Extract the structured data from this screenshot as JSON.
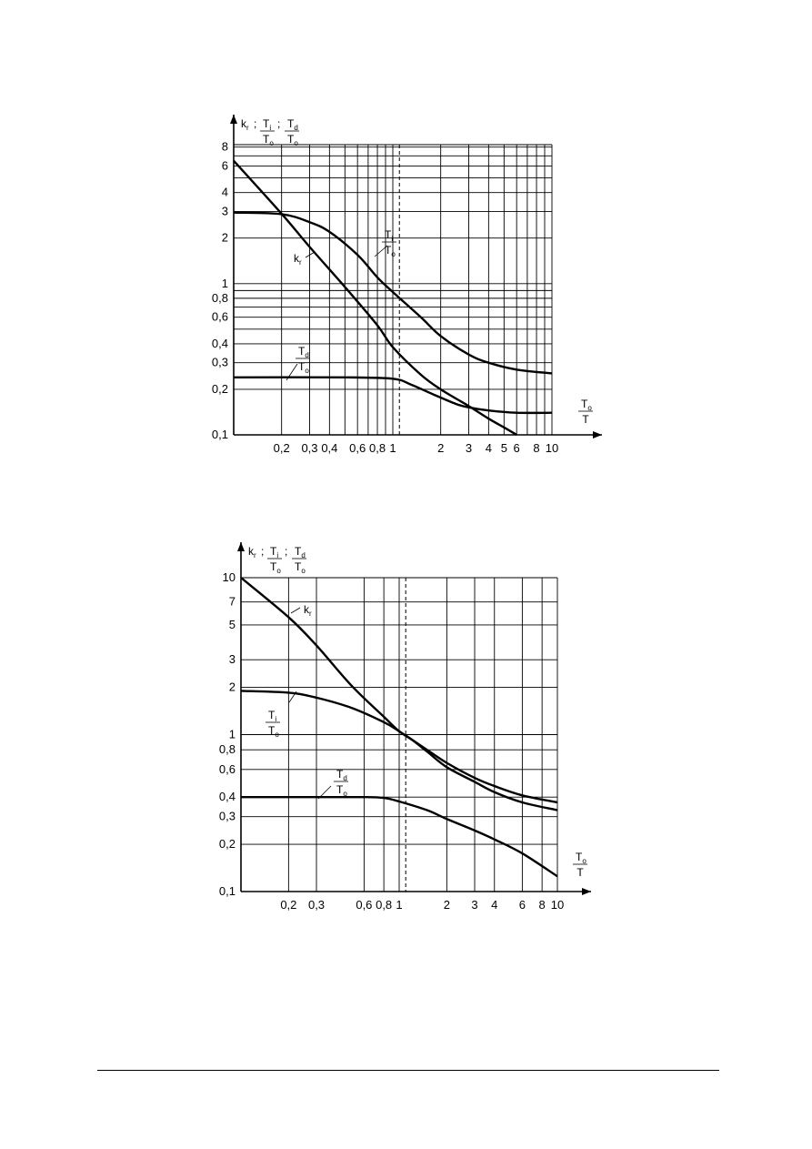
{
  "chart_data": [
    {
      "type": "line",
      "xscale": "log",
      "yscale": "log",
      "xlim": [
        0.1,
        10
      ],
      "ylim": [
        0.1,
        10
      ],
      "x_ticks": [
        {
          "v": 0.2,
          "t": "0,2"
        },
        {
          "v": 0.3,
          "t": "0,3"
        },
        {
          "v": 0.4,
          "t": "0,4"
        },
        {
          "v": 0.6,
          "t": "0,6"
        },
        {
          "v": 0.8,
          "t": "0,8"
        },
        {
          "v": 1,
          "t": "1"
        },
        {
          "v": 2,
          "t": "2"
        },
        {
          "v": 3,
          "t": "3"
        },
        {
          "v": 4,
          "t": "4"
        },
        {
          "v": 5,
          "t": "5"
        },
        {
          "v": 6,
          "t": "6"
        },
        {
          "v": 8,
          "t": "8"
        },
        {
          "v": 10,
          "t": "10"
        }
      ],
      "y_ticks": [
        {
          "v": 0.1,
          "t": "0,1"
        },
        {
          "v": 0.2,
          "t": "0,2"
        },
        {
          "v": 0.3,
          "t": "0,3"
        },
        {
          "v": 0.4,
          "t": "0,4"
        },
        {
          "v": 0.6,
          "t": "0,6"
        },
        {
          "v": 0.8,
          "t": "0,8"
        },
        {
          "v": 1,
          "t": "1"
        },
        {
          "v": 2,
          "t": "2"
        },
        {
          "v": 3,
          "t": "3"
        },
        {
          "v": 4,
          "t": "4"
        },
        {
          "v": 6,
          "t": "6"
        },
        {
          "v": 8,
          "t": "8"
        }
      ],
      "x_grid": [
        0.2,
        0.3,
        0.4,
        0.5,
        0.6,
        0.7,
        0.8,
        0.9,
        1,
        2,
        3,
        4,
        5,
        6,
        7,
        8,
        9,
        10
      ],
      "y_grid": [
        0.2,
        0.3,
        0.4,
        0.5,
        0.6,
        0.7,
        0.8,
        0.9,
        1,
        2,
        3,
        4,
        5,
        6,
        7,
        8
      ],
      "dashed_x": 1.1,
      "y_axis_label": {
        "k": "k",
        "k_sub": "r",
        "sep": ";",
        "n1": "T",
        "n1_sub": "i",
        "d1": "T",
        "d1_sub": "o",
        "n2": "T",
        "n2_sub": "d",
        "d2": "T",
        "d2_sub": "o"
      },
      "x_axis_label": {
        "num": "T",
        "num_sub": "o",
        "den": "T"
      },
      "series": [
        {
          "name": "k_r",
          "x": [
            0.1,
            0.2,
            0.3,
            0.5,
            0.8,
            1.0,
            1.5,
            2.0,
            3.0,
            4.0,
            5.0,
            6.0
          ],
          "y": [
            6.5,
            2.9,
            1.75,
            0.95,
            0.53,
            0.38,
            0.25,
            0.2,
            0.155,
            0.128,
            0.112,
            0.1
          ]
        },
        {
          "name": "T_i/T_o",
          "x": [
            0.1,
            0.2,
            0.3,
            0.4,
            0.6,
            0.8,
            1.0,
            1.5,
            2.0,
            3.0,
            4.0,
            6.0,
            10.0
          ],
          "y": [
            2.95,
            2.88,
            2.55,
            2.2,
            1.55,
            1.1,
            0.88,
            0.6,
            0.45,
            0.34,
            0.3,
            0.27,
            0.255
          ]
        },
        {
          "name": "T_d/T_o",
          "x": [
            0.1,
            0.5,
            1.0,
            1.3,
            1.8,
            2.5,
            3.0,
            4.0,
            6.0,
            10.0
          ],
          "y": [
            0.24,
            0.24,
            0.235,
            0.215,
            0.185,
            0.16,
            0.152,
            0.145,
            0.14,
            0.14
          ]
        }
      ],
      "curve_labels": [
        {
          "series": "k_r",
          "text": "k",
          "sub": "r"
        },
        {
          "series": "T_i/T_o",
          "num": "T",
          "num_sub": "i",
          "den": "T",
          "den_sub": "o"
        },
        {
          "series": "T_d/T_o",
          "num": "T",
          "num_sub": "d",
          "den": "T",
          "den_sub": "o"
        }
      ]
    },
    {
      "type": "line",
      "xscale": "log",
      "yscale": "log",
      "xlim": [
        0.1,
        10
      ],
      "ylim": [
        0.1,
        10
      ],
      "x_ticks": [
        {
          "v": 0.2,
          "t": "0,2"
        },
        {
          "v": 0.3,
          "t": "0,3"
        },
        {
          "v": 0.6,
          "t": "0,6"
        },
        {
          "v": 0.8,
          "t": "0,8"
        },
        {
          "v": 1,
          "t": "1"
        },
        {
          "v": 2,
          "t": "2"
        },
        {
          "v": 3,
          "t": "3"
        },
        {
          "v": 4,
          "t": "4"
        },
        {
          "v": 6,
          "t": "6"
        },
        {
          "v": 8,
          "t": "8"
        },
        {
          "v": 10,
          "t": "10"
        }
      ],
      "y_ticks": [
        {
          "v": 0.1,
          "t": "0,1"
        },
        {
          "v": 0.2,
          "t": "0,2"
        },
        {
          "v": 0.3,
          "t": "0,3"
        },
        {
          "v": 0.4,
          "t": "0,4"
        },
        {
          "v": 0.6,
          "t": "0,6"
        },
        {
          "v": 0.8,
          "t": "0,8"
        },
        {
          "v": 1,
          "t": "1"
        },
        {
          "v": 2,
          "t": "2"
        },
        {
          "v": 3,
          "t": "3"
        },
        {
          "v": 5,
          "t": "5"
        },
        {
          "v": 7,
          "t": "7"
        },
        {
          "v": 10,
          "t": "10"
        }
      ],
      "x_grid": [
        0.2,
        0.3,
        0.6,
        0.8,
        1,
        2,
        3,
        4,
        6,
        8,
        10
      ],
      "y_grid": [
        0.2,
        0.3,
        0.4,
        0.6,
        0.8,
        1,
        2,
        3,
        5,
        7,
        10
      ],
      "dashed_x": 1.1,
      "y_axis_label": {
        "k": "k",
        "k_sub": "r",
        "sep": ";",
        "n1": "T",
        "n1_sub": "i",
        "d1": "T",
        "d1_sub": "o",
        "n2": "T",
        "n2_sub": "d",
        "d2": "T",
        "d2_sub": "o"
      },
      "x_axis_label": {
        "num": "T",
        "num_sub": "o",
        "den": "T"
      },
      "series": [
        {
          "name": "k_r",
          "x": [
            0.1,
            0.2,
            0.3,
            0.5,
            0.8,
            1.0,
            1.2,
            1.5,
            2.0,
            3.0,
            4.0,
            6.0,
            10.0
          ],
          "y": [
            10.0,
            5.6,
            3.7,
            2.05,
            1.3,
            1.05,
            0.93,
            0.8,
            0.66,
            0.53,
            0.47,
            0.41,
            0.37
          ]
        },
        {
          "name": "T_i/T_o",
          "x": [
            0.1,
            0.2,
            0.3,
            0.5,
            0.8,
            1.0,
            1.2,
            1.5,
            2.0,
            3.0,
            4.0,
            6.0,
            10.0
          ],
          "y": [
            1.9,
            1.85,
            1.72,
            1.48,
            1.2,
            1.05,
            0.93,
            0.78,
            0.62,
            0.5,
            0.43,
            0.37,
            0.33
          ]
        },
        {
          "name": "T_d/T_o",
          "x": [
            0.1,
            0.3,
            0.6,
            0.8,
            1.0,
            1.5,
            2.0,
            3.0,
            4.0,
            6.0,
            10.0
          ],
          "y": [
            0.4,
            0.4,
            0.4,
            0.395,
            0.375,
            0.33,
            0.29,
            0.245,
            0.215,
            0.175,
            0.125
          ]
        }
      ],
      "curve_labels": [
        {
          "series": "k_r",
          "text": "k",
          "sub": "r"
        },
        {
          "series": "T_i/T_o",
          "num": "T",
          "num_sub": "i",
          "den": "T",
          "den_sub": "o"
        },
        {
          "series": "T_d/T_o",
          "num": "T",
          "num_sub": "d",
          "den": "T",
          "den_sub": "o"
        }
      ]
    }
  ]
}
